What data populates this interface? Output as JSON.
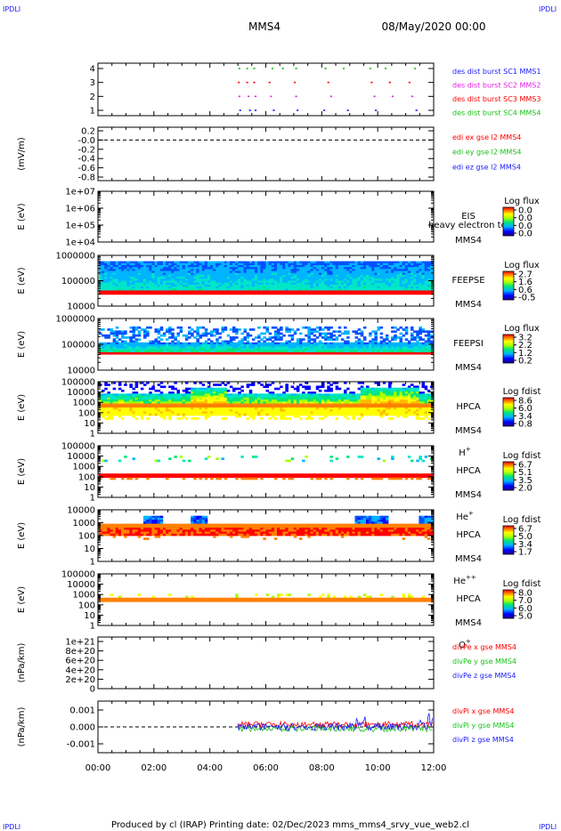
{
  "header": {
    "corner_left": "IPDLI",
    "corner_right": "IPDLI",
    "spacecraft": "MMS4",
    "datetime": "08/May/2020 00:00"
  },
  "footer": {
    "text": "Produced by cl (IRAP)   Printing date: 02/Dec/2023   mms_mms4_srvy_vue_web2.cl",
    "corner_left": "IPDLI",
    "corner_right": "IPDLI"
  },
  "time_axis": {
    "ticks": [
      "00:00",
      "02:00",
      "04:00",
      "06:00",
      "08:00",
      "10:00",
      "12:00"
    ],
    "range_hours": [
      0,
      12
    ]
  },
  "colors": {
    "black": "#000000",
    "blue": "#1a1aff",
    "red": "#ff0000",
    "green": "#19c119",
    "magenta": "#e61ee6"
  },
  "chart_data": [
    {
      "type": "scatter",
      "ylabel": "",
      "yticks": [
        "4",
        "3",
        "2",
        "1"
      ],
      "ylim": [
        0.5,
        4.5
      ],
      "legend": [
        {
          "text": "des dist burst SC1 MMS1",
          "color": "#1a1aff"
        },
        {
          "text": "des dist burst SC2 MMS2",
          "color": "#e61ee6"
        },
        {
          "text": "des dist burst SC3 MMS3",
          "color": "#ff0000"
        },
        {
          "text": "des dist burst SC4 MMS4",
          "color": "#19c119"
        }
      ],
      "series": [
        {
          "y": 4,
          "color": "#19c119",
          "x": [
            5.02,
            5.3,
            5.55,
            6.2,
            6.58,
            7.05,
            8.1,
            8.75,
            9.7,
            10.25,
            11.3
          ]
        },
        {
          "y": 3,
          "color": "#ff0000",
          "x": [
            5.0,
            5.3,
            5.55,
            6.1,
            7.0,
            8.2,
            9.75,
            10.4,
            11.1
          ]
        },
        {
          "y": 2,
          "color": "#e61ee6",
          "x": [
            5.02,
            5.35,
            5.6,
            6.15,
            7.05,
            8.3,
            9.85,
            10.5,
            11.2
          ]
        },
        {
          "y": 1,
          "color": "#1a1aff",
          "x": [
            5.05,
            5.4,
            5.6,
            6.25,
            7.1,
            8.05,
            8.9,
            9.9,
            11.35
          ]
        }
      ]
    },
    {
      "type": "line",
      "ylabel": "(mV/m)",
      "yticks": [
        "0.2",
        "-0.0",
        "-0.2",
        "-0.4",
        "-0.6",
        "-0.8"
      ],
      "ylim": [
        -0.9,
        0.25
      ],
      "dashed_reference": 0.0,
      "legend": [
        {
          "text": "edi ex gse l2 MMS4",
          "color": "#ff0000"
        },
        {
          "text": "edi ey gse l2 MMS4",
          "color": "#19c119"
        },
        {
          "text": "edi ez gse l2 MMS4",
          "color": "#1a1aff"
        }
      ]
    },
    {
      "type": "heatmap",
      "ylabel": "E (eV)",
      "yticks": [
        "1e+07",
        "1e+06",
        "1e+05",
        "1e+04"
      ],
      "ylog": true,
      "labels": [
        "EIS",
        "MMS4"
      ],
      "overlay_text": "heavy electron to",
      "colorbar_title": "Log flux",
      "colorbar_ticks": [
        "0.0",
        "0.0",
        "0.0",
        "0.0"
      ]
    },
    {
      "type": "heatmap",
      "ylabel": "E (eV)",
      "yticks": [
        "1000000",
        "100000",
        "10000"
      ],
      "ylog": true,
      "labels": [
        "FEEPSE",
        "MMS4"
      ],
      "colorbar_title": "Log flux",
      "colorbar_ticks": [
        "2.7",
        "1.6",
        "0.6",
        "-0.5"
      ]
    },
    {
      "type": "heatmap",
      "ylabel": "E (eV)",
      "yticks": [
        "1000000",
        "100000",
        "10000"
      ],
      "ylog": true,
      "labels": [
        "FEEPSI",
        "MMS4"
      ],
      "colorbar_title": "Log flux",
      "colorbar_ticks": [
        "3.2",
        "2.2",
        "1.2",
        "0.2"
      ]
    },
    {
      "type": "heatmap",
      "ylabel": "E (eV)",
      "yticks": [
        "100000",
        "10000",
        "1000",
        "100",
        "10",
        "1"
      ],
      "ylog": true,
      "labels": [
        "HPCA",
        "MMS4"
      ],
      "species": "H",
      "species_sup": "+",
      "colorbar_title": "Log fdist",
      "colorbar_ticks": [
        "8.6",
        "6.0",
        "3.4",
        "0.8"
      ]
    },
    {
      "type": "heatmap",
      "ylabel": "E (eV)",
      "yticks": [
        "100000",
        "10000",
        "1000",
        "100",
        "10",
        "1"
      ],
      "ylog": true,
      "labels": [
        "HPCA",
        "MMS4"
      ],
      "species": "He",
      "species_sup": "+",
      "colorbar_title": "Log fdist",
      "colorbar_ticks": [
        "6.7",
        "5.1",
        "3.5",
        "2.0"
      ]
    },
    {
      "type": "heatmap",
      "ylabel": "E (eV)",
      "yticks": [
        "10000",
        "1000",
        "100",
        "10",
        "1"
      ],
      "ylog": true,
      "labels": [
        "HPCA",
        "MMS4"
      ],
      "species": "He",
      "species_sup": "++",
      "colorbar_title": "Log fdist",
      "colorbar_ticks": [
        "6.7",
        "5.0",
        "3.4",
        "1.7"
      ]
    },
    {
      "type": "heatmap",
      "ylabel": "E (eV)",
      "yticks": [
        "100000",
        "10000",
        "1000",
        "100",
        "10",
        "1"
      ],
      "ylog": true,
      "labels": [
        "HPCA",
        "MMS4"
      ],
      "species": "O",
      "species_sup": "+",
      "colorbar_title": "Log fdist",
      "colorbar_ticks": [
        "8.0",
        "7.0",
        "6.0",
        "5.0"
      ]
    },
    {
      "type": "line",
      "ylabel": "(nPa/km)",
      "yticks": [
        "1e+21",
        "8e+20",
        "6e+20",
        "4e+20",
        "2e+20",
        "0"
      ],
      "ylim": [
        0,
        1.1e+21
      ],
      "dashed_reference": 0,
      "legend": [
        {
          "text": "divPe x gse MMS4",
          "color": "#ff0000"
        },
        {
          "text": "divPe y gse MMS4",
          "color": "#19c119"
        },
        {
          "text": "divPe z gse MMS4",
          "color": "#1a1aff"
        }
      ]
    },
    {
      "type": "line",
      "ylabel": "(nPa/km)",
      "yticks": [
        "0.001",
        "0.000",
        "-0.001"
      ],
      "ylim": [
        -0.0015,
        0.0015
      ],
      "dashed_reference": 0,
      "data_start_hour": 5.0,
      "legend": [
        {
          "text": "divPi x gse MMS4",
          "color": "#ff0000"
        },
        {
          "text": "divPi y gse MMS4",
          "color": "#19c119"
        },
        {
          "text": "divPi z gse MMS4",
          "color": "#1a1aff"
        }
      ]
    }
  ]
}
